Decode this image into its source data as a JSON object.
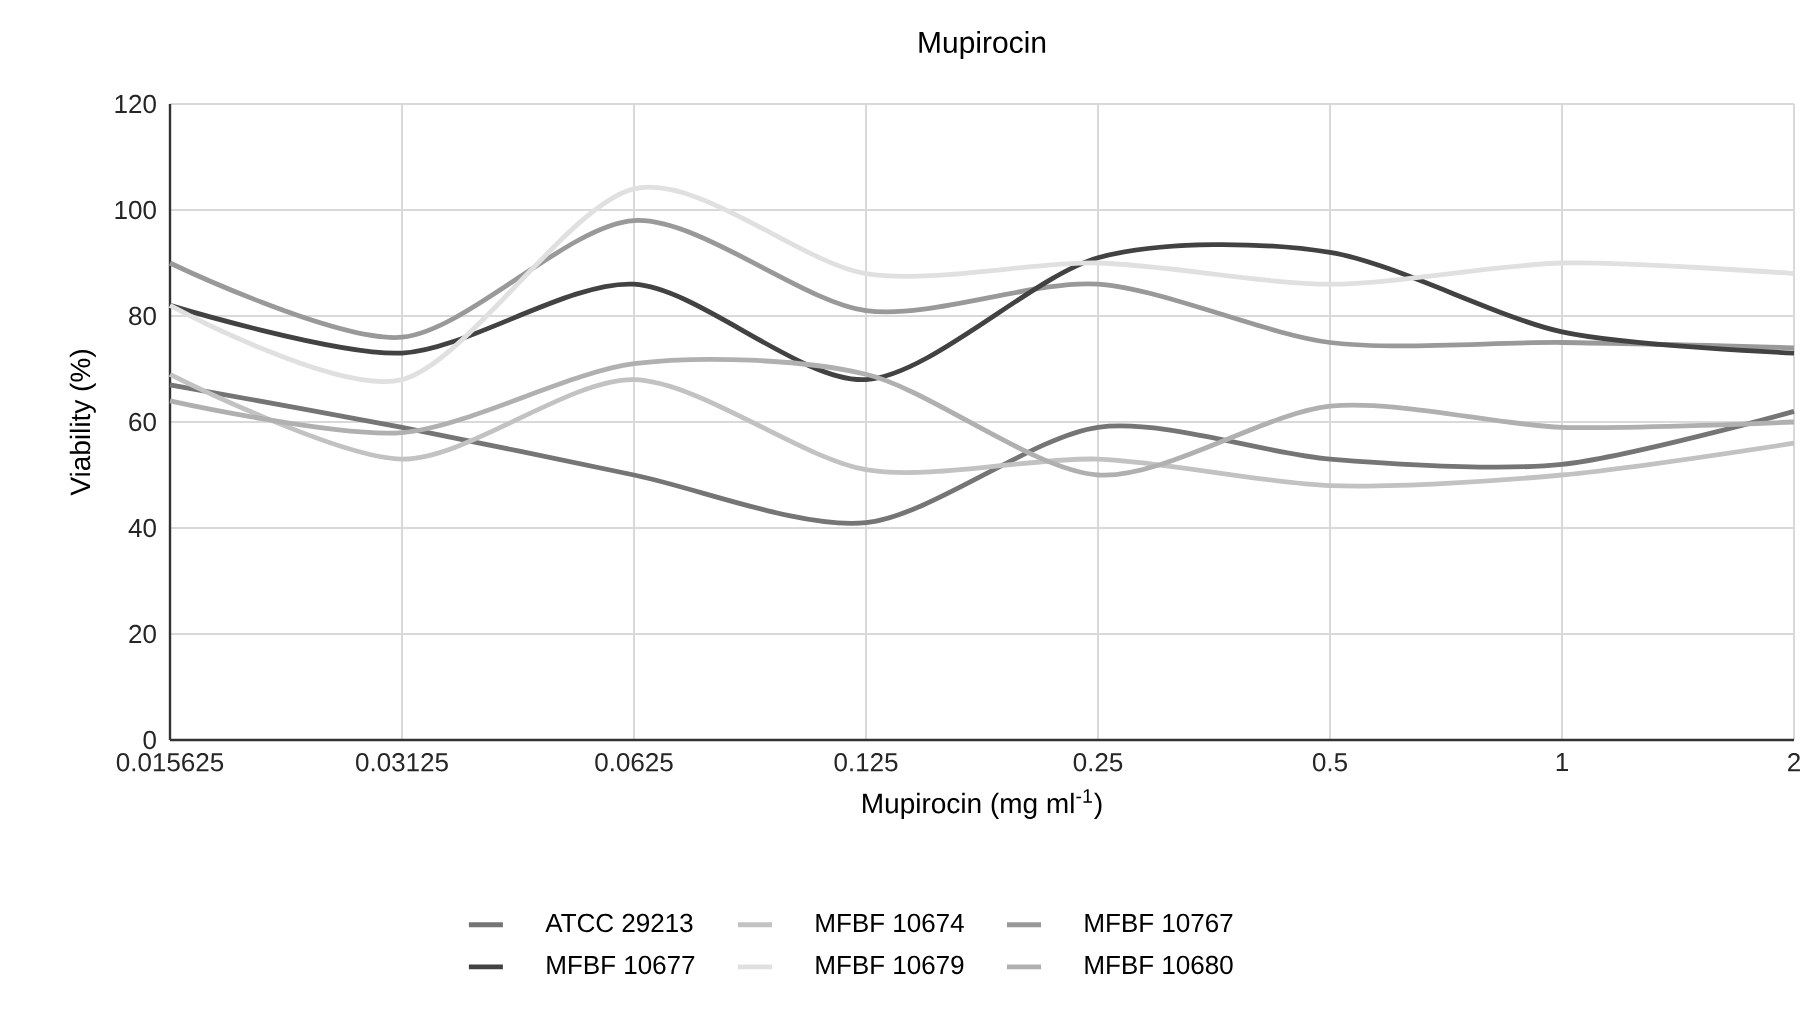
{
  "chart_data": {
    "type": "line",
    "title": "Mupirocin",
    "xlabel": "Mupirocin (mg ml$^{-1}$)",
    "ylabel": "Viability (%)",
    "categories": [
      "0.015625",
      "0.03125",
      "0.0625",
      "0.125",
      "0.25",
      "0.5",
      "1",
      "2"
    ],
    "series": [
      {
        "name": "ATCC 29213",
        "color": "#757575",
        "values": [
          67,
          59,
          50,
          41,
          59,
          53,
          52,
          62
        ]
      },
      {
        "name": "MFBF 10674",
        "color": "#c2c2c2",
        "values": [
          69,
          53,
          68,
          51,
          53,
          48,
          50,
          56
        ]
      },
      {
        "name": "MFBF 10767",
        "color": "#999999",
        "values": [
          90,
          76,
          98,
          81,
          86,
          75,
          75,
          74
        ]
      },
      {
        "name": "MFBF 10677",
        "color": "#424242",
        "values": [
          82,
          73,
          86,
          68,
          91,
          92,
          77,
          73
        ]
      },
      {
        "name": "MFBF 10679",
        "color": "#e0e0e0",
        "values": [
          82,
          68,
          104,
          88,
          90,
          86,
          90,
          88
        ]
      },
      {
        "name": "MFBF 10680",
        "color": "#b0b0b0",
        "values": [
          64,
          58,
          71,
          69,
          50,
          63,
          59,
          60
        ]
      }
    ],
    "ylim": [
      0,
      120
    ],
    "yticks": [
      0,
      20,
      40,
      60,
      80,
      100,
      120
    ],
    "grid": true,
    "legend": "bottom",
    "marker": "none",
    "line_style": "solid"
  }
}
